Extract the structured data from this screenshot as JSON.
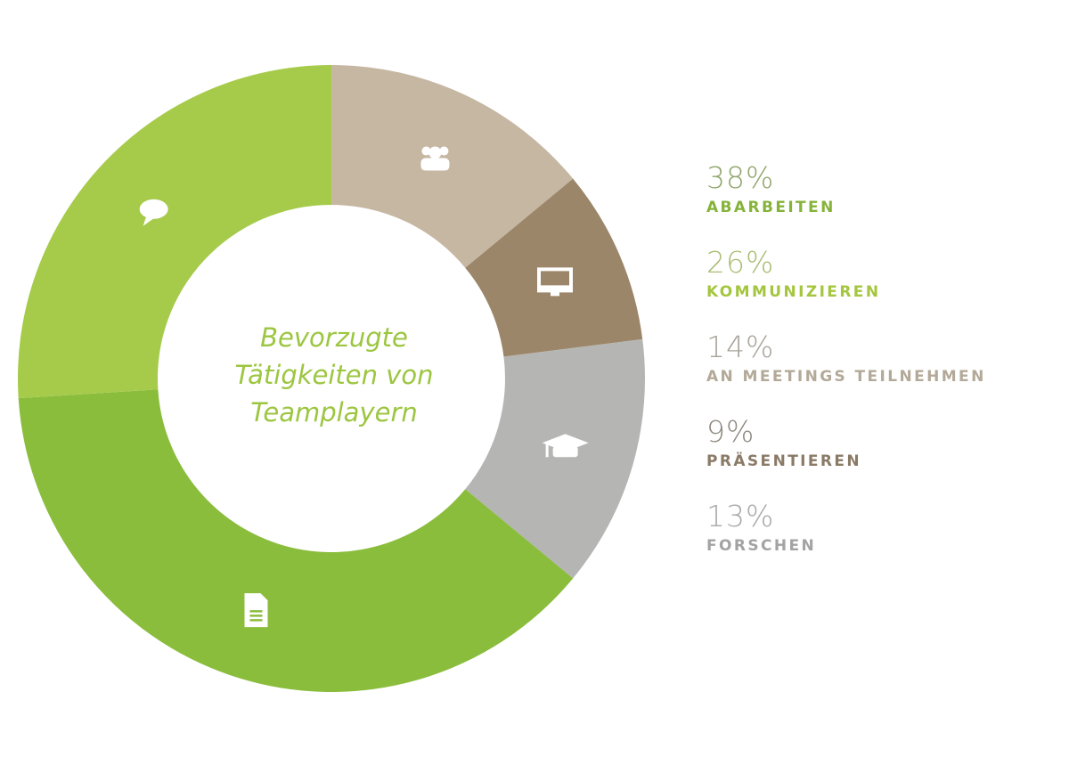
{
  "chart_data": {
    "type": "pie",
    "variant": "donut",
    "title": [
      "Bevorzugte",
      "Tätigkeiten von",
      "Teamplayern"
    ],
    "slices": [
      {
        "label": "AN MEETINGS TEILNEHMEN",
        "value": 14,
        "pct": "14%",
        "color": "#c6b7a3",
        "text_color": "#b3a998",
        "pct_color": "#a9a39a",
        "icon": "group-icon"
      },
      {
        "label": "PRÄSENTIEREN",
        "value": 9,
        "pct": "9%",
        "color": "#9c8669",
        "text_color": "#8a7a66",
        "pct_color": "#8f8a82",
        "icon": "monitor-icon"
      },
      {
        "label": "FORSCHEN",
        "value": 13,
        "pct": "13%",
        "color": "#b5b5b3",
        "text_color": "#a3a3a3",
        "pct_color": "#a8a8a8",
        "icon": "graduation-cap-icon"
      },
      {
        "label": "ABARBEITEN",
        "value": 38,
        "pct": "38%",
        "color": "#8bbd3d",
        "text_color": "#86b33a",
        "pct_color": "#8fa56a",
        "icon": "document-icon"
      },
      {
        "label": "KOMMUNIZIEREN",
        "value": 26,
        "pct": "26%",
        "color": "#a6cb4b",
        "text_color": "#a4c63e",
        "pct_color": "#a9bd72",
        "icon": "speech-bubble-icon"
      }
    ],
    "legend_order": [
      3,
      4,
      0,
      1,
      2
    ],
    "legend_position": "right"
  }
}
